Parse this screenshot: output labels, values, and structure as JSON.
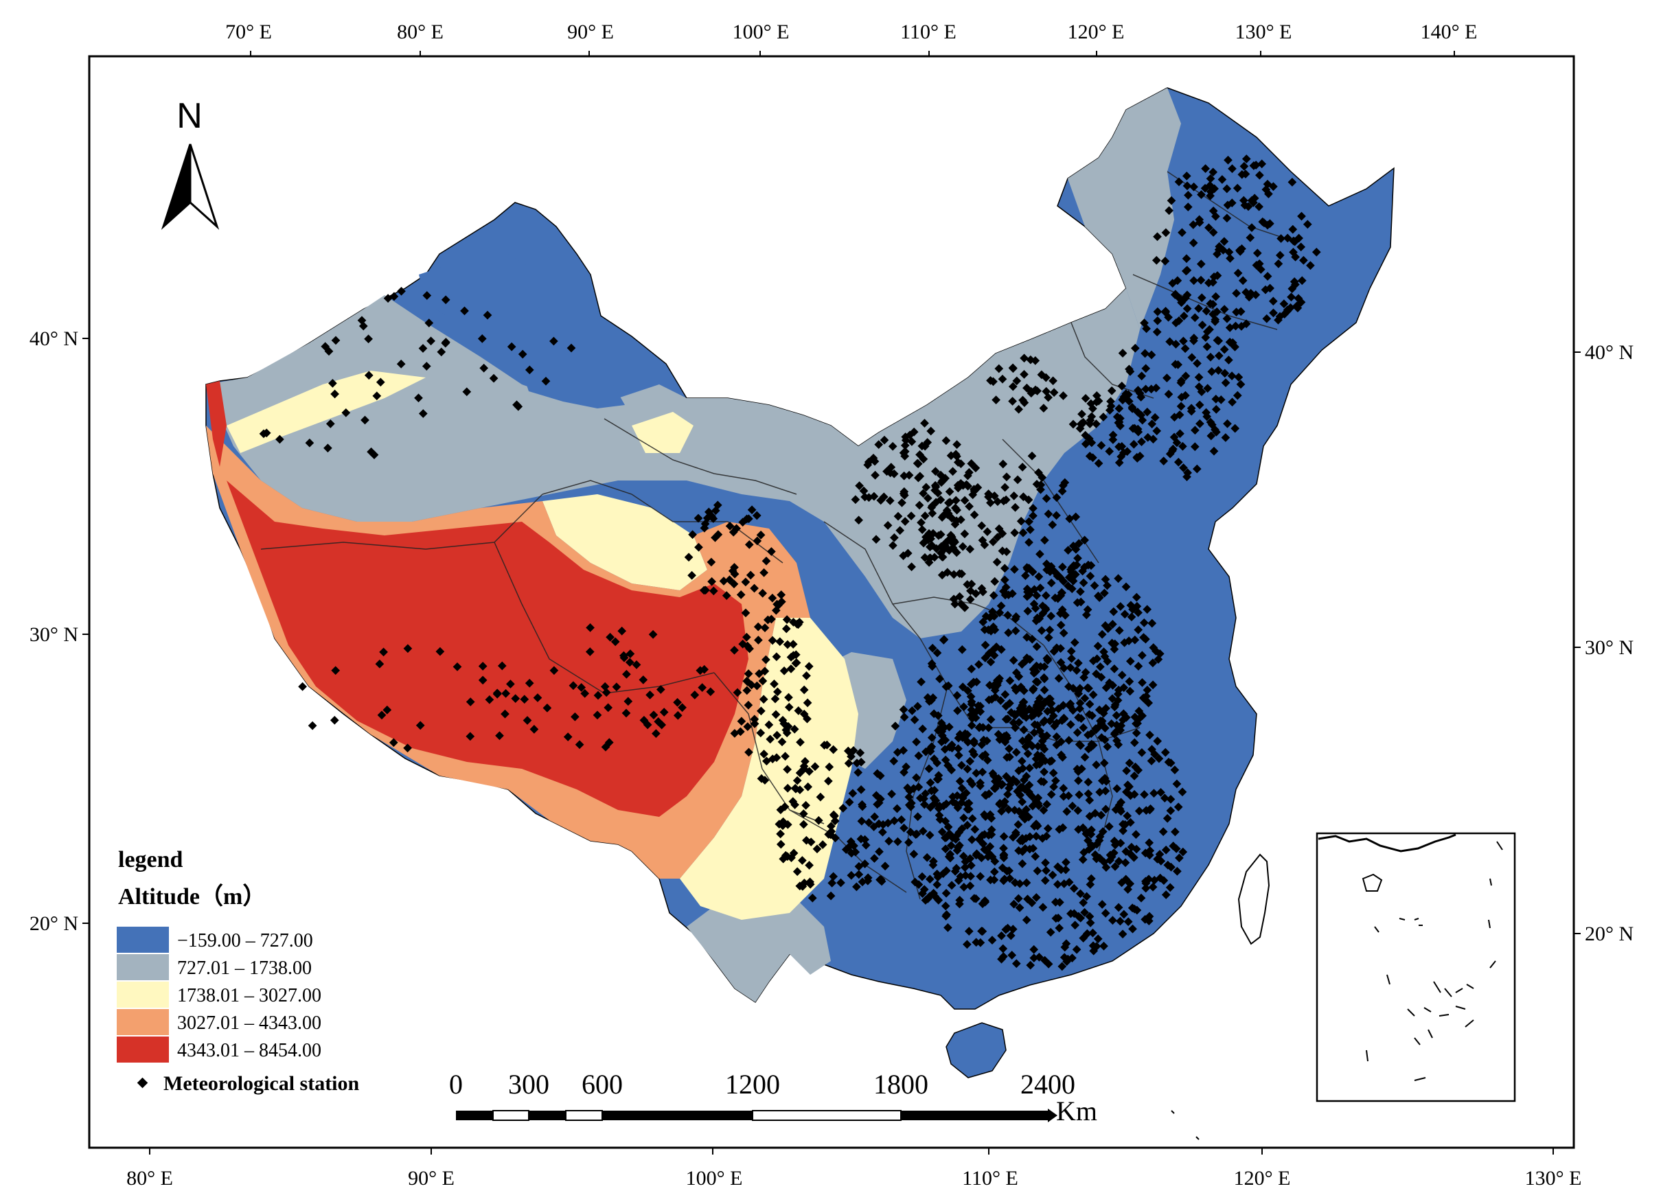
{
  "graticule": {
    "top_longitudes": [
      "70° E",
      "80° E",
      "90° E",
      "100° E",
      "110° E",
      "120° E",
      "130° E",
      "140° E"
    ],
    "bottom_longitudes": [
      "80° E",
      "90° E",
      "100° E",
      "110° E",
      "120° E",
      "130° E"
    ],
    "left_latitudes": [
      "40° N",
      "30° N",
      "20° N"
    ],
    "right_latitudes": [
      "40° N",
      "30° N",
      "20° N"
    ]
  },
  "north_arrow": {
    "letter": "N"
  },
  "legend": {
    "heading": "legend",
    "title": "Altitude（m）",
    "classes": [
      {
        "label": "−159.00 – 727.00",
        "color": "#4472B8"
      },
      {
        "label": "727.01 – 1738.00",
        "color": "#A3B3BF"
      },
      {
        "label": "1738.01 – 3027.00",
        "color": "#FFF8C0"
      },
      {
        "label": "3027.01 – 4343.00",
        "color": "#F3A06E"
      },
      {
        "label": "4343.01 – 8454.00",
        "color": "#D63228"
      }
    ],
    "station_label": "Meteorological station",
    "station_color": "#000000"
  },
  "scale_bar": {
    "ticks": [
      "0",
      "300",
      "600",
      "1200",
      "1800",
      "2400"
    ],
    "unit": "Km"
  },
  "colors": {
    "border": "#000000",
    "background": "#FFFFFF",
    "province_lines": "#222222"
  }
}
